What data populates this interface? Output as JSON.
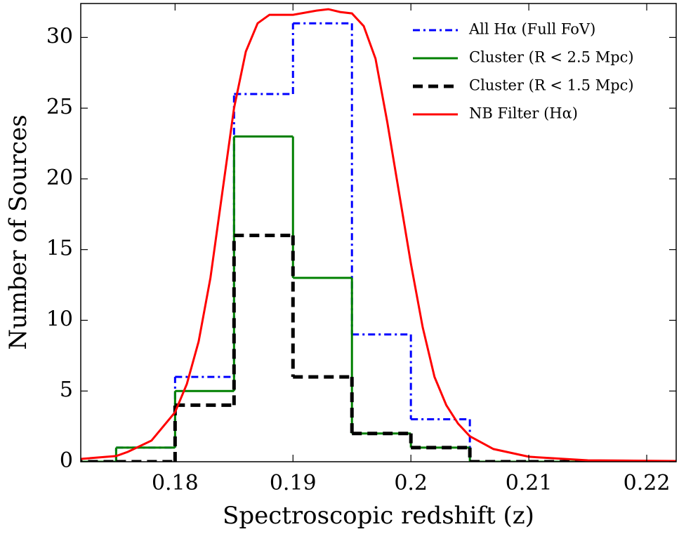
{
  "chart_data": {
    "type": "histogram",
    "xlabel": "Spectroscopic redshift (z)",
    "ylabel": "Number of Sources",
    "xlim": [
      0.172,
      0.2225
    ],
    "ylim": [
      0,
      32.4
    ],
    "xticks": [
      0.18,
      0.19,
      0.2,
      0.21,
      0.22
    ],
    "yticks": [
      0,
      5,
      10,
      15,
      20,
      25,
      30
    ],
    "legend": "upper right",
    "bins": [
      0.17,
      0.175,
      0.18,
      0.185,
      0.19,
      0.195,
      0.2,
      0.205,
      0.21,
      0.215,
      0.22,
      0.225
    ],
    "series": [
      {
        "name": "All Hα (Full FoV)",
        "color": "#0000ff",
        "linestyle": "dashdot",
        "values": [
          0,
          1,
          6,
          26,
          31,
          9,
          3,
          0,
          0,
          0,
          0
        ]
      },
      {
        "name": "Cluster (R < 2.5 Mpc)",
        "color": "#008000",
        "linestyle": "solid",
        "values": [
          0,
          1,
          5,
          23,
          13,
          2,
          1,
          0,
          0,
          0,
          0
        ]
      },
      {
        "name": "Cluster (R < 1.5 Mpc)",
        "color": "#000000",
        "linestyle": "dashed",
        "values": [
          0,
          0,
          4,
          16,
          6,
          2,
          1,
          0,
          0,
          0,
          0
        ]
      }
    ],
    "line_series": {
      "name": "NB Filter (Hα)",
      "color": "#ff0000",
      "linestyle": "solid",
      "x": [
        0.172,
        0.175,
        0.176,
        0.178,
        0.18,
        0.181,
        0.182,
        0.183,
        0.184,
        0.185,
        0.186,
        0.187,
        0.188,
        0.19,
        0.192,
        0.193,
        0.194,
        0.195,
        0.196,
        0.197,
        0.198,
        0.199,
        0.2,
        0.201,
        0.202,
        0.203,
        0.204,
        0.205,
        0.207,
        0.21,
        0.215,
        0.2225
      ],
      "values": [
        0.2,
        0.4,
        0.7,
        1.5,
        3.5,
        5.5,
        8.5,
        13,
        19,
        25,
        29,
        31,
        31.6,
        31.6,
        31.9,
        32,
        31.8,
        31.7,
        30.8,
        28.5,
        24,
        19,
        14,
        9.5,
        6,
        4,
        2.7,
        1.8,
        0.9,
        0.35,
        0.1,
        0.05
      ]
    }
  }
}
